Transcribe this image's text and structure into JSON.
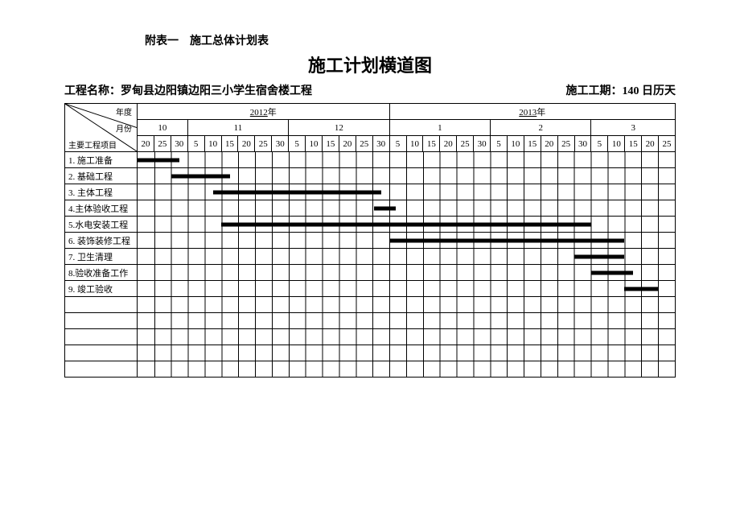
{
  "subtitle": "附表一　施工总体计划表",
  "title": "施工计划横道图",
  "project_label": "工程名称：",
  "project_name": "罗甸县边阳镇边阳三小学生宿舍楼工程",
  "duration_label": "施工工期：",
  "duration_value": "140 日历天",
  "corner": {
    "top": "年度",
    "mid": "月份",
    "bot": "主要工程项目"
  },
  "years": [
    "2012",
    "2013"
  ],
  "year_suffix": "年",
  "months": [
    "10",
    "11",
    "12",
    "1",
    "2",
    "3"
  ],
  "month_col_counts": [
    3,
    6,
    6,
    6,
    6,
    5
  ],
  "day_headers": [
    "20",
    "25",
    "30",
    "5",
    "10",
    "15",
    "20",
    "25",
    "30",
    "5",
    "10",
    "15",
    "20",
    "25",
    "30",
    "5",
    "10",
    "15",
    "20",
    "25",
    "30",
    "5",
    "10",
    "15",
    "20",
    "25",
    "30",
    "5",
    "10",
    "15",
    "20",
    "25"
  ],
  "total_cols": 32,
  "tasks": [
    {
      "label": "1. 施工准备",
      "start": 0,
      "span": 2.5
    },
    {
      "label": "2. 基础工程",
      "start": 2,
      "span": 3.5
    },
    {
      "label": "3. 主体工程",
      "start": 4.5,
      "span": 10
    },
    {
      "label": "4.主体验收工程",
      "start": 14.1,
      "span": 1.3
    },
    {
      "label": "5.水电安装工程",
      "start": 5,
      "span": 22
    },
    {
      "label": "6. 装饰装修工程",
      "start": 15,
      "span": 14
    },
    {
      "label": "7. 卫生清理",
      "start": 26,
      "span": 3
    },
    {
      "label": "8.验收准备工作",
      "start": 27,
      "span": 2.5
    },
    {
      "label": "9. 竣工验收",
      "start": 29,
      "span": 2
    }
  ],
  "blank_rows": 5,
  "colors": {
    "bar": "#000000",
    "border": "#000000",
    "background": "#ffffff",
    "text": "#000000"
  },
  "font": {
    "family": "SimSun",
    "title_size": 22,
    "body_size": 11
  }
}
